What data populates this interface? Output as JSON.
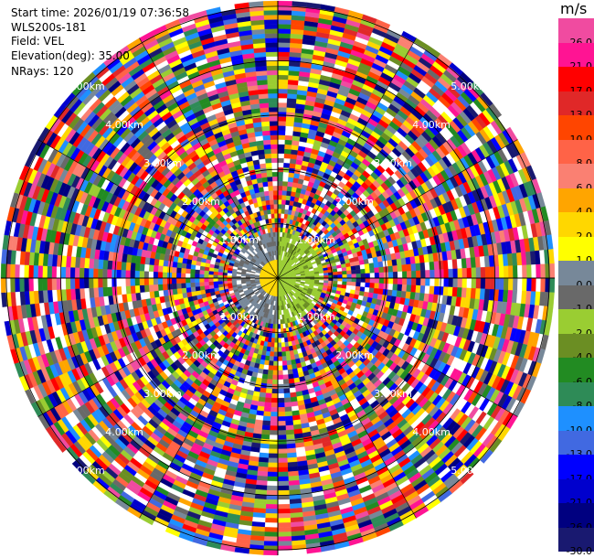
{
  "header": {
    "start_time": "Start time: 2026/01/19 07:36:58",
    "station": "WLS200s-181",
    "field": "Field: VEL",
    "elevation": "Elevation(deg): 35.00",
    "nrays": "NRays: 120"
  },
  "colorbar": {
    "unit": "m/s",
    "bins": [
      {
        "label": "26.0",
        "color": "#f04ba0"
      },
      {
        "label": "21.0",
        "color": "#ff1493"
      },
      {
        "label": "17.0",
        "color": "#ff0000"
      },
      {
        "label": "13.0",
        "color": "#e02828"
      },
      {
        "label": "10.0",
        "color": "#ff4500"
      },
      {
        "label": "8.0",
        "color": "#ff6347"
      },
      {
        "label": "6.0",
        "color": "#fa8072"
      },
      {
        "label": "4.0",
        "color": "#ffa500"
      },
      {
        "label": "2.0",
        "color": "#ffd700"
      },
      {
        "label": "1.0",
        "color": "#ffff00"
      },
      {
        "label": "0.0",
        "color": "#778899"
      },
      {
        "label": "-1.0",
        "color": "#696969"
      },
      {
        "label": "-2.0",
        "color": "#9acd32"
      },
      {
        "label": "-4.0",
        "color": "#6b8e23"
      },
      {
        "label": "-6.0",
        "color": "#228b22"
      },
      {
        "label": "-8.0",
        "color": "#2e8b57"
      },
      {
        "label": "-10.0",
        "color": "#1e90ff"
      },
      {
        "label": "-13.0",
        "color": "#4169e1"
      },
      {
        "label": "-17.0",
        "color": "#0000ff"
      },
      {
        "label": "-21.0",
        "color": "#0000cd"
      },
      {
        "label": "-26.0",
        "color": "#000080"
      },
      {
        "label": "-30.0",
        "color": "#191970"
      }
    ]
  },
  "range_rings": [
    {
      "label": "1.00km",
      "km": 1
    },
    {
      "label": "2.00km",
      "km": 2
    },
    {
      "label": "3.00km",
      "km": 3
    },
    {
      "label": "4.00km",
      "km": 4
    },
    {
      "label": "5.00km",
      "km": 5
    }
  ],
  "ppi": {
    "max_range_km": 5.1,
    "n_rays": 120,
    "n_gates": 60,
    "near_field_km": 0.9
  }
}
